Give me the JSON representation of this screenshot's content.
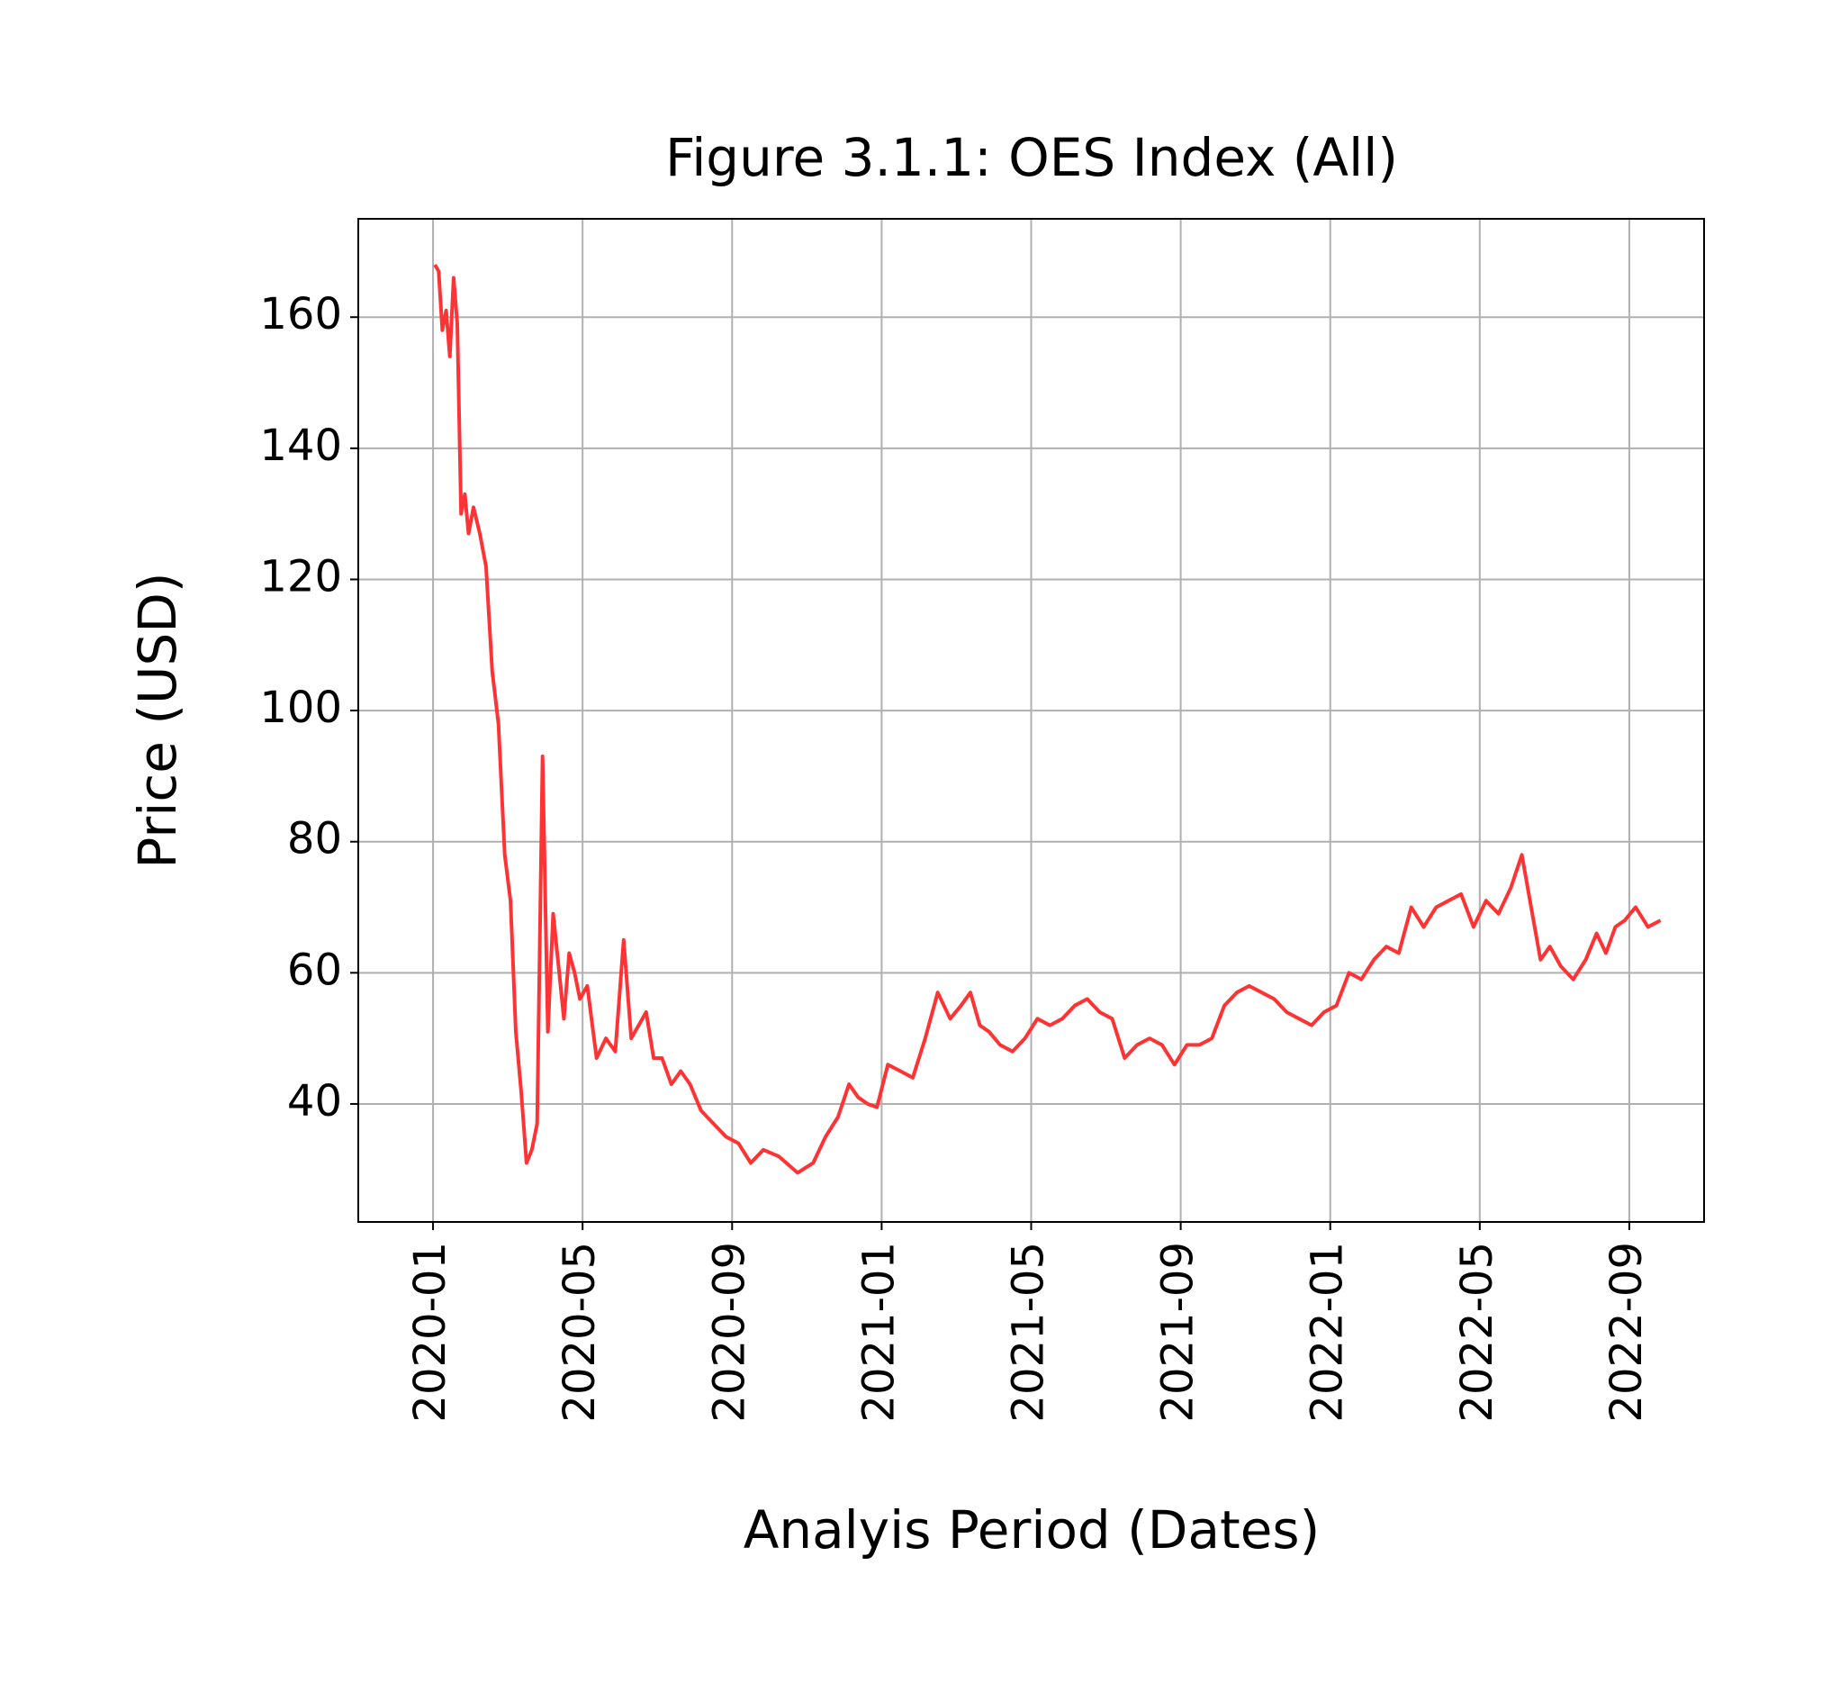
{
  "chart_data": {
    "type": "line",
    "title": "Figure 3.1.1: OES Index (All)",
    "x_label": "Analyis Period (Dates)",
    "y_label": "Price (USD)",
    "color": "#ff3333",
    "x": [
      "2020-01",
      "2020-01",
      "2020-01",
      "2020-01",
      "2020-01",
      "2020-01",
      "2020-01",
      "2020-01",
      "2020-01",
      "2020-01",
      "2020-02",
      "2020-02",
      "2020-02",
      "2020-02",
      "2020-02",
      "2020-02",
      "2020-03",
      "2020-03",
      "2020-03",
      "2020-03",
      "2020-03",
      "2020-03",
      "2020-03",
      "2020-04",
      "2020-04",
      "2020-04",
      "2020-04",
      "2020-04",
      "2020-04",
      "2020-04",
      "2020-05",
      "2020-05",
      "2020-05",
      "2020-05",
      "2020-06",
      "2020-06",
      "2020-06",
      "2020-06",
      "2020-06",
      "2020-07",
      "2020-07",
      "2020-07",
      "2020-07",
      "2020-08",
      "2020-08",
      "2020-08",
      "2020-09",
      "2020-09",
      "2020-09",
      "2020-10",
      "2020-10",
      "2020-11",
      "2020-11",
      "2020-11",
      "2020-12",
      "2020-12",
      "2020-12",
      "2020-12",
      "2021-01",
      "2021-01",
      "2021-01",
      "2021-02",
      "2021-02",
      "2021-02",
      "2021-03",
      "2021-03",
      "2021-03",
      "2021-03",
      "2021-04",
      "2021-04",
      "2021-04",
      "2021-05",
      "2021-05",
      "2021-05",
      "2021-06",
      "2021-06",
      "2021-06",
      "2021-07",
      "2021-07",
      "2021-07",
      "2021-08",
      "2021-08",
      "2021-08",
      "2021-09",
      "2021-09",
      "2021-09",
      "2021-10",
      "2021-10",
      "2021-10",
      "2021-11",
      "2021-11",
      "2021-11",
      "2021-12",
      "2021-12",
      "2021-12",
      "2022-01",
      "2022-01",
      "2022-01",
      "2022-02",
      "2022-02",
      "2022-02",
      "2022-03",
      "2022-03",
      "2022-03",
      "2022-04",
      "2022-04",
      "2022-04",
      "2022-05",
      "2022-05",
      "2022-05",
      "2022-06",
      "2022-06",
      "2022-06",
      "2022-06",
      "2022-07",
      "2022-07",
      "2022-07",
      "2022-08",
      "2022-08",
      "2022-08",
      "2022-08",
      "2022-09",
      "2022-09",
      "2022-09"
    ],
    "values": [
      168,
      167,
      158,
      161,
      154,
      166,
      159,
      130,
      133,
      127,
      131,
      127,
      122,
      106,
      98,
      78,
      71,
      51,
      42,
      31,
      33,
      37,
      93,
      51,
      69,
      61,
      53,
      63,
      60,
      56,
      58,
      47,
      50,
      48,
      65,
      50,
      52,
      54,
      47,
      47,
      43,
      45,
      43,
      39,
      37,
      35,
      34,
      31,
      33,
      32,
      29.5,
      31,
      35,
      38,
      43,
      41,
      40,
      39.5,
      46,
      45,
      44,
      50,
      57,
      53,
      55,
      57,
      52,
      51,
      49,
      48,
      50,
      53,
      52,
      53,
      55,
      56,
      54,
      53,
      47,
      49,
      50,
      49,
      46,
      49,
      49,
      50,
      55,
      57,
      58,
      57,
      56,
      54,
      53,
      52,
      54,
      55,
      60,
      59,
      62,
      64,
      63,
      70,
      67,
      70,
      71,
      72,
      67,
      71,
      69,
      73,
      78,
      70,
      62,
      64,
      61,
      59,
      62,
      66,
      63,
      67,
      68,
      70,
      67,
      68
    ],
    "xlim": [
      "2019-11",
      "2022-11"
    ],
    "xticks": [
      "2020-01",
      "2020-05",
      "2020-09",
      "2021-01",
      "2021-05",
      "2021-09",
      "2022-01",
      "2022-05",
      "2022-09"
    ],
    "ylim": [
      22,
      175
    ],
    "yticks": [
      40,
      60,
      80,
      100,
      120,
      140,
      160
    ],
    "grid": true
  }
}
